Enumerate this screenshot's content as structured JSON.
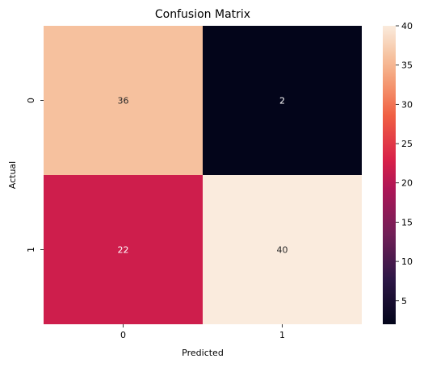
{
  "chart_data": {
    "type": "heatmap",
    "title": "Confusion Matrix",
    "xlabel": "Predicted",
    "ylabel": "Actual",
    "x_categories": [
      "0",
      "1"
    ],
    "y_categories": [
      "0",
      "1"
    ],
    "values": [
      [
        36,
        2
      ],
      [
        22,
        40
      ]
    ],
    "colorbar": {
      "min": 2,
      "max": 40,
      "ticks": [
        5,
        10,
        15,
        20,
        25,
        30,
        35,
        40
      ],
      "tick_labels": [
        "5",
        "10",
        "15",
        "20",
        "25",
        "30",
        "35",
        "40"
      ],
      "colormap": "rocket"
    },
    "colors": {
      "low": "#03051a",
      "high": "#faebdd",
      "text_on_dark": "#ffffff",
      "text_on_light": "#262626"
    }
  }
}
